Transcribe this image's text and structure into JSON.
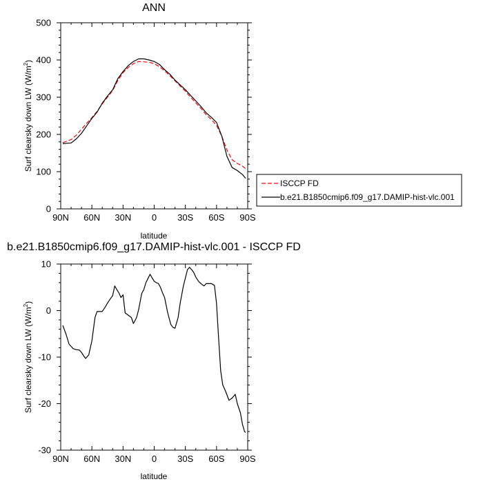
{
  "chart_data": [
    {
      "type": "line",
      "title": "ANN",
      "xlabel": "latitude",
      "ylabel": "Surf clearsky down LW (W/m",
      "ylabel_sup": "2",
      "ylabel_close": ")",
      "xlim": [
        90,
        -90
      ],
      "ylim": [
        0,
        500
      ],
      "x_ticks": [
        90,
        60,
        30,
        0,
        -30,
        -60,
        -90
      ],
      "x_tick_labels": [
        "90N",
        "60N",
        "30N",
        "0",
        "30S",
        "60S",
        "90S"
      ],
      "y_ticks": [
        0,
        100,
        200,
        300,
        400,
        500
      ],
      "y_tick_labels": [
        "0",
        "100",
        "200",
        "300",
        "400",
        "500"
      ],
      "legend_position": "right-bottom-outside",
      "series": [
        {
          "name": "ISCCP FD",
          "color": "#ff0000",
          "dash": "dashed",
          "x": [
            88,
            85,
            80,
            75,
            70,
            65,
            60,
            55,
            50,
            45,
            40,
            35,
            30,
            25,
            20,
            15,
            10,
            5,
            0,
            -5,
            -10,
            -15,
            -20,
            -25,
            -30,
            -35,
            -40,
            -45,
            -50,
            -55,
            -60,
            -65,
            -70,
            -75,
            -80,
            -85,
            -88
          ],
          "values": [
            178,
            181,
            186,
            198,
            214,
            230,
            245,
            262,
            282,
            300,
            318,
            345,
            366,
            380,
            390,
            396,
            395,
            394,
            390,
            382,
            371,
            358,
            344,
            330,
            316,
            300,
            285,
            270,
            253,
            240,
            224,
            196,
            158,
            132,
            122,
            115,
            108
          ]
        },
        {
          "name": "b.e21.B1850cmip6.f09_g17.DAMIP-hist-vlc.001",
          "color": "#000000",
          "dash": "solid",
          "x": [
            88,
            85,
            80,
            75,
            70,
            65,
            60,
            55,
            50,
            45,
            40,
            35,
            30,
            25,
            20,
            15,
            10,
            5,
            0,
            -5,
            -10,
            -15,
            -20,
            -25,
            -30,
            -35,
            -40,
            -45,
            -50,
            -55,
            -60,
            -65,
            -70,
            -75,
            -80,
            -85,
            -88
          ],
          "values": [
            175,
            176,
            177,
            188,
            203,
            223,
            243,
            260,
            284,
            303,
            320,
            350,
            369,
            385,
            396,
            403,
            403,
            400,
            396,
            388,
            374,
            362,
            346,
            333,
            320,
            305,
            290,
            275,
            258,
            246,
            232,
            196,
            141,
            111,
            103,
            92,
            82
          ]
        }
      ]
    },
    {
      "type": "line",
      "title": "b.e21.B1850cmip6.f09_g17.DAMIP-hist-vlc.001 - ISCCP FD",
      "xlabel": "latitude",
      "ylabel": "Surf clearsky down LW (W/m",
      "ylabel_sup": "2",
      "ylabel_close": ")",
      "xlim": [
        90,
        -90
      ],
      "ylim": [
        -30,
        10
      ],
      "x_ticks": [
        90,
        60,
        30,
        0,
        -30,
        -60,
        -90
      ],
      "x_tick_labels": [
        "90N",
        "60N",
        "30N",
        "0",
        "30S",
        "60S",
        "90S"
      ],
      "y_ticks": [
        -30,
        -20,
        -10,
        0,
        10
      ],
      "y_tick_labels": [
        "-30",
        "-20",
        "-10",
        "0",
        "10"
      ],
      "series": [
        {
          "name": "b.e21.B1850cmip6.f09_g17.DAMIP-hist-vlc.001 - ISCCP FD",
          "color": "#000000",
          "dash": "solid",
          "x": [
            88,
            85,
            82,
            78,
            75,
            72,
            70,
            68,
            66,
            63,
            60,
            57,
            55,
            52,
            50,
            47,
            45,
            42,
            40,
            38,
            36,
            34,
            32,
            30,
            28,
            25,
            22,
            20,
            17,
            15,
            12,
            10,
            8,
            6,
            4,
            2,
            0,
            -2,
            -4,
            -6,
            -8,
            -10,
            -13,
            -16,
            -18,
            -20,
            -23,
            -25,
            -28,
            -30,
            -32,
            -34,
            -36,
            -38,
            -40,
            -43,
            -46,
            -48,
            -50,
            -53,
            -55,
            -58,
            -60,
            -62,
            -64,
            -66,
            -69,
            -72,
            -75,
            -78,
            -80,
            -83,
            -85,
            -87,
            -88
          ],
          "values": [
            -3.2,
            -5.0,
            -7.2,
            -8.2,
            -8.4,
            -8.5,
            -9.0,
            -9.7,
            -10.3,
            -9.5,
            -6.5,
            -1.5,
            -0.2,
            -0.2,
            -0.2,
            0.8,
            1.6,
            2.6,
            3.2,
            5.3,
            4.5,
            3.8,
            2.8,
            3.4,
            -0.5,
            -1.0,
            -1.5,
            -2.8,
            -1.5,
            0.2,
            3.7,
            4.5,
            6.0,
            6.9,
            7.8,
            7.0,
            6.3,
            6.0,
            5.8,
            5.0,
            3.8,
            2.8,
            -0.5,
            -3.0,
            -3.6,
            -3.8,
            -1.5,
            1.6,
            5.2,
            7.0,
            8.8,
            9.3,
            8.8,
            8.2,
            7.2,
            6.2,
            5.6,
            5.3,
            5.8,
            5.8,
            5.8,
            5.4,
            1.5,
            -6.0,
            -13.0,
            -16.0,
            -17.5,
            -19.3,
            -18.8,
            -18.0,
            -20.0,
            -22.0,
            -24.5,
            -26.0,
            -26.2
          ]
        }
      ]
    }
  ]
}
